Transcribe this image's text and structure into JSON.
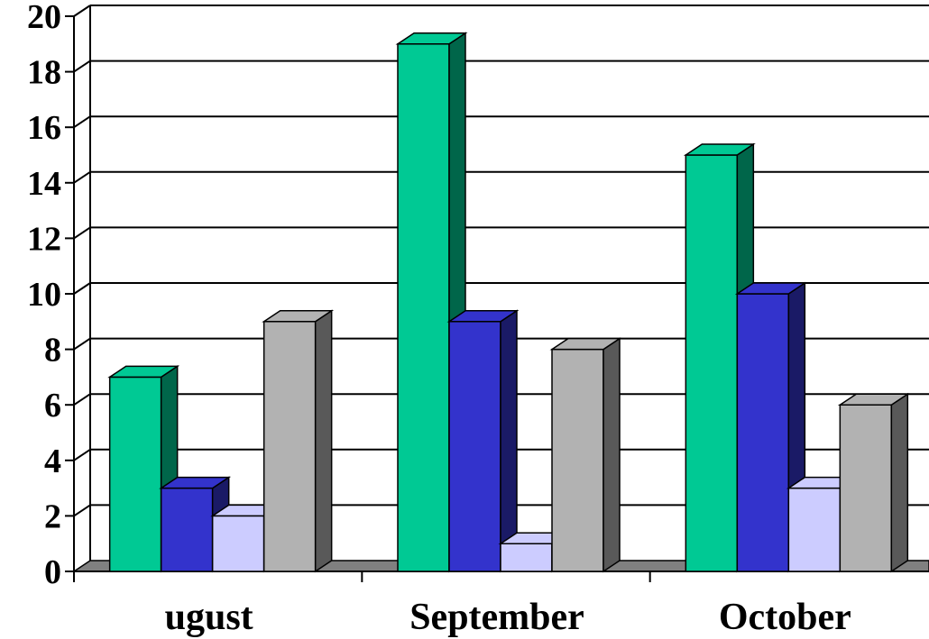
{
  "chart_data": {
    "type": "bar",
    "style": "3d-clustered",
    "categories": [
      "ugust",
      "September",
      "October"
    ],
    "series": [
      {
        "values": [
          7,
          19,
          15
        ],
        "color": "#00C994",
        "side_color": "#00664A"
      },
      {
        "values": [
          3,
          9,
          10
        ],
        "color": "#3333CC",
        "side_color": "#1A1A66"
      },
      {
        "values": [
          2,
          1,
          3
        ],
        "color": "#CCCCFF",
        "side_color": "#9999CC"
      },
      {
        "values": [
          9,
          8,
          6
        ],
        "color": "#B2B2B2",
        "side_color": "#595959"
      }
    ],
    "ylim": [
      0,
      20
    ],
    "yticks": [
      "0",
      "2",
      "4",
      "6",
      "8",
      "10",
      "12",
      "14",
      "16",
      "18",
      "20"
    ],
    "grid": true,
    "legend": "none",
    "xlabel": "",
    "ylabel": "",
    "title": "",
    "floor_color": "#808080"
  }
}
